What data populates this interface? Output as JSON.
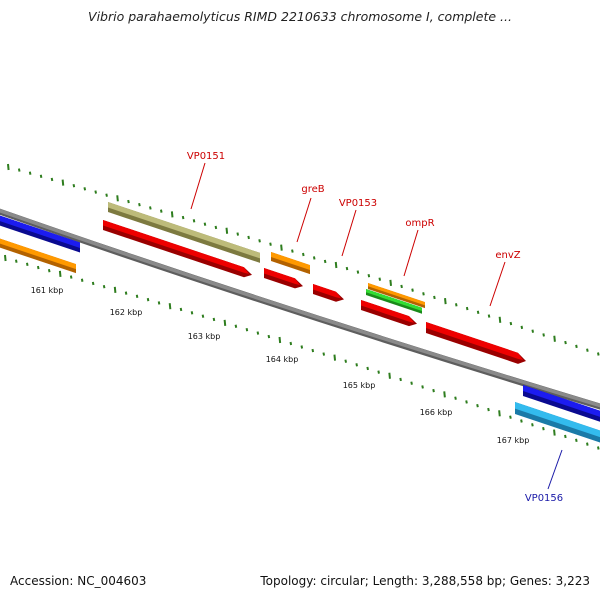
{
  "title": "Vibrio parahaemolyticus RIMD 2210633 chromosome I, complete ...",
  "footer": {
    "accession": "Accession: NC_004603",
    "summary": "Topology: circular; Length: 3,288,558 bp; Genes: 3,223"
  },
  "colors": {
    "backbone": "#8a8a8a",
    "tick": "#2e7d1e",
    "label_red": "#cc0000",
    "label_blue": "#1a1aa8"
  },
  "scale": {
    "tick_labels": [
      "161 kbp",
      "162 kbp",
      "163 kbp",
      "164 kbp",
      "165 kbp",
      "166 kbp",
      "167 kbp"
    ]
  },
  "gene_labels": [
    {
      "id": "vp0151",
      "text": "VP0151",
      "color": "#cc0000"
    },
    {
      "id": "greb",
      "text": "greB",
      "color": "#cc0000"
    },
    {
      "id": "vp0153",
      "text": "VP0153",
      "color": "#cc0000"
    },
    {
      "id": "ompr",
      "text": "ompR",
      "color": "#cc0000"
    },
    {
      "id": "envz",
      "text": "envZ",
      "color": "#cc0000"
    },
    {
      "id": "vp0156",
      "text": "VP0156",
      "color": "#1a1aa8"
    }
  ],
  "features": [
    {
      "name": "feature-blue-left",
      "color": "#1c1cf0",
      "dark": "#0a0a90"
    },
    {
      "name": "feature-orange-left",
      "color": "#ff9900",
      "dark": "#b36200"
    },
    {
      "name": "feature-khaki-vp0151",
      "color": "#bdbb7a",
      "dark": "#7d7a40"
    },
    {
      "name": "gene-arrow-vp0151",
      "color": "#ee0000",
      "dark": "#9a0000"
    },
    {
      "name": "feature-orange-greb",
      "color": "#ff9900",
      "dark": "#b36200"
    },
    {
      "name": "gene-arrow-greb",
      "color": "#ee0000",
      "dark": "#9a0000"
    },
    {
      "name": "gene-arrow-vp0153",
      "color": "#ee0000",
      "dark": "#9a0000"
    },
    {
      "name": "feature-orange-ompr",
      "color": "#ff9900",
      "dark": "#b36200"
    },
    {
      "name": "feature-green-ompr",
      "color": "#33dd33",
      "dark": "#1a8a1a"
    },
    {
      "name": "gene-arrow-ompr",
      "color": "#ee0000",
      "dark": "#9a0000"
    },
    {
      "name": "gene-arrow-envz",
      "color": "#ee0000",
      "dark": "#9a0000"
    },
    {
      "name": "feature-blue-right",
      "color": "#1c1cf0",
      "dark": "#0a0a90"
    },
    {
      "name": "feature-cyan-vp0156",
      "color": "#33bbee",
      "dark": "#1a7aa8"
    }
  ]
}
